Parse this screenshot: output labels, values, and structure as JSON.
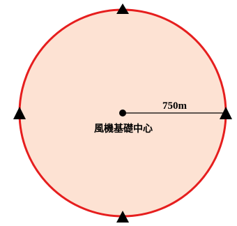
{
  "diagram": {
    "radius_label": "750m",
    "center_label": "風機基礎中心",
    "colors": {
      "circle_fill": "#fde2d3",
      "circle_stroke": "#e61e1e",
      "marker": "#000000",
      "text": "#000000"
    },
    "markers": [
      {
        "name": "top-marker-icon",
        "shape": "triangle"
      },
      {
        "name": "left-marker-icon",
        "shape": "triangle"
      },
      {
        "name": "right-marker-icon",
        "shape": "triangle"
      },
      {
        "name": "bottom-marker-icon",
        "shape": "triangle"
      }
    ]
  }
}
